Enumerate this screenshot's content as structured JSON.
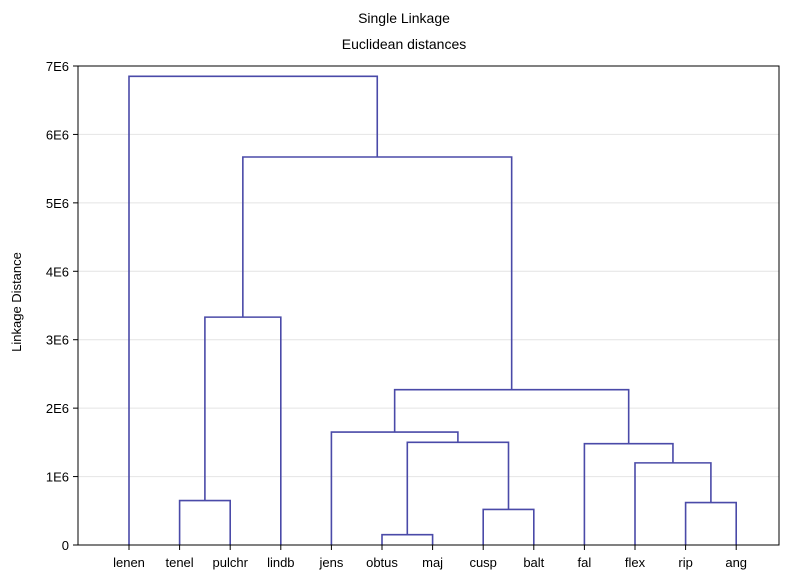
{
  "chart_data": {
    "type": "dendrogram",
    "title": "Single Linkage",
    "subtitle": "Euclidean distances",
    "ylabel": "Linkage Distance",
    "ylim": [
      0,
      7000000
    ],
    "yticks": [
      {
        "value": 0,
        "label": "0"
      },
      {
        "value": 1000000,
        "label": "1E6"
      },
      {
        "value": 2000000,
        "label": "2E6"
      },
      {
        "value": 3000000,
        "label": "3E6"
      },
      {
        "value": 4000000,
        "label": "4E6"
      },
      {
        "value": 5000000,
        "label": "5E6"
      },
      {
        "value": 6000000,
        "label": "6E6"
      },
      {
        "value": 7000000,
        "label": "7E6"
      }
    ],
    "grid": true,
    "leaves": [
      "lenen",
      "tenel",
      "pulchr",
      "lindb",
      "jens",
      "obtus",
      "maj",
      "cusp",
      "balt",
      "fal",
      "flex",
      "rip",
      "ang"
    ],
    "merges": [
      {
        "left": "obtus",
        "right": "maj",
        "height": 150000
      },
      {
        "left": "cusp",
        "right": "balt",
        "height": 520000
      },
      {
        "left": "rip",
        "right": "ang",
        "height": 620000
      },
      {
        "left": "tenel",
        "right": "pulchr",
        "height": 650000
      },
      {
        "left": "obtus+maj",
        "right": "cusp+balt",
        "height": 1500000
      },
      {
        "left": "flex",
        "right": "rip+ang",
        "height": 1200000
      },
      {
        "left": "fal",
        "right": "flex+rip+ang",
        "height": 1480000
      },
      {
        "left": "jens",
        "right": "obtus+maj+cusp+balt",
        "height": 1650000
      },
      {
        "left": "jens+obtus+maj+cusp+balt",
        "right": "fal+flex+rip+ang",
        "height": 2270000
      },
      {
        "left": "tenel+pulchr",
        "right": "lindb",
        "height": 3330000
      },
      {
        "left": "tenel+pulchr+lindb",
        "right": "jens+obtus+maj+cusp+balt+fal+flex+rip+ang",
        "height": 5670000
      },
      {
        "left": "lenen",
        "right": "tenel+pulchr+lindb+jens+obtus+maj+cusp+balt+fal+flex+rip+ang",
        "height": 6850000
      }
    ]
  }
}
